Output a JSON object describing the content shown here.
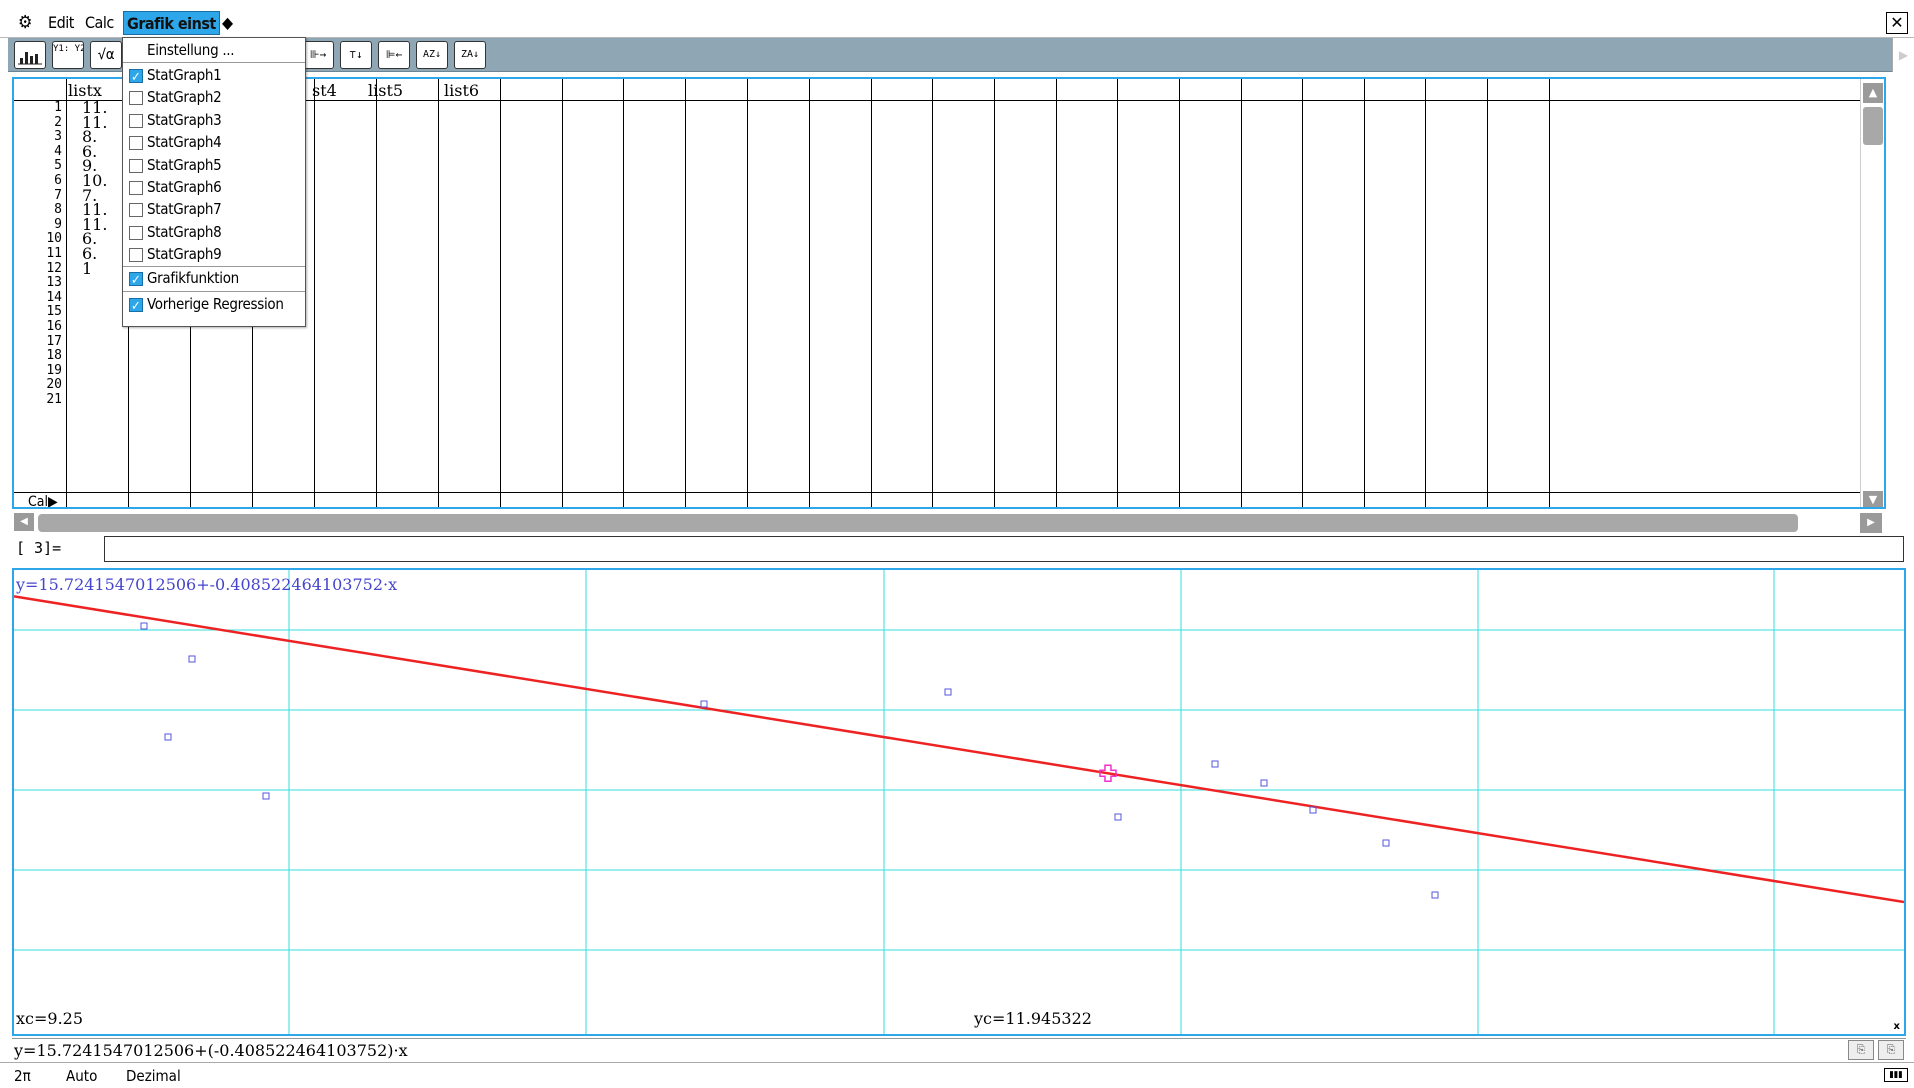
{
  "menubar": {
    "gear": "⚙",
    "edit": "Edit",
    "calc": "Calc",
    "grafik": "Grafik einst",
    "diamond": "◆",
    "close": "✕"
  },
  "toolbar": {
    "buttons": [
      "graph-icon",
      "y-editor-icon",
      "sqrt-alpha-icon"
    ],
    "graph_glyph": "📊",
    "y_editor_glyph": "Y1:\nY2:",
    "sqrt_glyph": "√α",
    "insert_col_glyph": "⊪→",
    "insert_row_glyph": "⊤↓",
    "delete_col_glyph": "⊫←",
    "sort_az_glyph": "AZ↓",
    "sort_za_glyph": "ZA↓",
    "right_arrow": "▶"
  },
  "menu": {
    "einstellung": "Einstellung ...",
    "items": [
      {
        "label": "StatGraph1",
        "checked": true
      },
      {
        "label": "StatGraph2",
        "checked": false
      },
      {
        "label": "StatGraph3",
        "checked": false
      },
      {
        "label": "StatGraph4",
        "checked": false
      },
      {
        "label": "StatGraph5",
        "checked": false
      },
      {
        "label": "StatGraph6",
        "checked": false
      },
      {
        "label": "StatGraph7",
        "checked": false
      },
      {
        "label": "StatGraph8",
        "checked": false
      },
      {
        "label": "StatGraph9",
        "checked": false
      }
    ],
    "grafikfunktion": "Grafikfunktion",
    "grafikfunktion_checked": true,
    "vorherige": "Vorherige Regression",
    "vorherige_checked": true
  },
  "sheet": {
    "col_headers": [
      "listx",
      "list4",
      "list5",
      "list6"
    ],
    "col_listx": "listx",
    "col_list4_partial": "st4",
    "col_list5": "list5",
    "col_list6": "list6",
    "row_numbers": [
      "1",
      "2",
      "3",
      "4",
      "5",
      "6",
      "7",
      "8",
      "9",
      "10",
      "11",
      "12",
      "13",
      "14",
      "15",
      "16",
      "17",
      "18",
      "19",
      "20",
      "21"
    ],
    "listx_values": [
      "11.",
      "11.",
      "8.",
      "6.",
      "9.",
      "10.",
      "7.",
      "11.",
      "11.",
      "6.",
      "6.",
      "1"
    ],
    "cal_label": "Cal▶",
    "cell_ref": "[  3]=",
    "cell_input": ""
  },
  "scroll": {
    "up": "▲",
    "down": "▼",
    "left": "◀",
    "right": "▶"
  },
  "graph": {
    "regression_label": "y=15.7241547012506+-0.408522464103752·x",
    "xc_readout": "xc=9.25",
    "yc_readout": "yc=11.945322",
    "corner": "x",
    "y_axis_marker": "y",
    "line_color": "#ee2222",
    "grid_color": "#33dddd",
    "point_color": "#5555dd",
    "cursor_color": "#ee33cc"
  },
  "chart_data": {
    "type": "scatter",
    "regression": {
      "intercept": 15.7241547012506,
      "slope": -0.408522464103752
    },
    "cursor": {
      "x": 9.25,
      "y": 11.945322
    },
    "x_range": [
      2.53,
      14.14
    ],
    "y_range": [
      7.9,
      15.1
    ],
    "grid": true
  },
  "formula": {
    "text": "y=15.7241547012506+(-0.408522464103752)·x",
    "icon1": "⎘",
    "icon2": "⎘"
  },
  "statusbar": {
    "angle": "2π",
    "mode": "Auto",
    "format": "Dezimal",
    "battery": "▮▮▮"
  }
}
